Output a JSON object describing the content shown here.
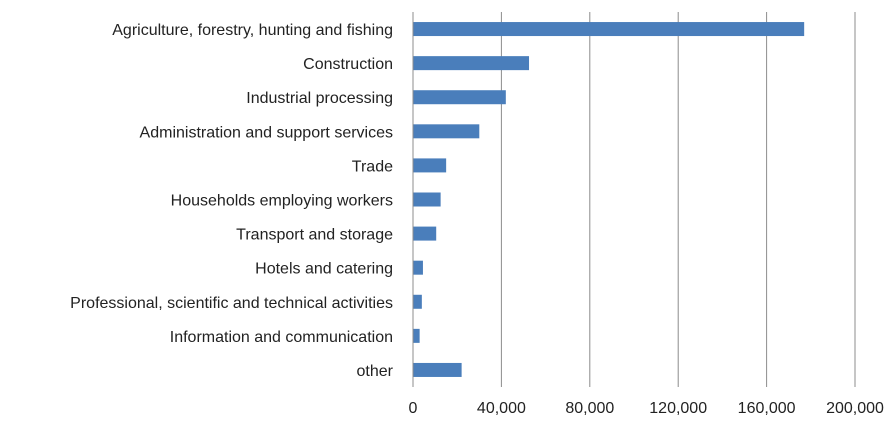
{
  "colors": {
    "bar": "#4a7ebb",
    "grid": "#8c8c8c",
    "text": "#222222"
  },
  "chart_data": {
    "type": "bar",
    "orientation": "horizontal",
    "title": "",
    "xlabel": "",
    "ylabel": "",
    "xlim": [
      0,
      200000
    ],
    "grid": true,
    "tick_values": [
      0,
      40000,
      80000,
      120000,
      160000,
      200000
    ],
    "tick_labels": [
      "0",
      "40,000",
      "80,000",
      "120,000",
      "160,000",
      "200,000"
    ],
    "categories": [
      "Agriculture, forestry, hunting and fishing",
      "Construction",
      "Industrial processing",
      "Administration and support services",
      "Trade",
      "Households employing workers",
      "Transport and storage",
      "Hotels and catering",
      "Professional, scientific and technical activities",
      "Information and communication",
      "other"
    ],
    "values": [
      177000,
      52500,
      42000,
      30000,
      15000,
      12500,
      10500,
      4500,
      4000,
      3000,
      22000
    ]
  }
}
